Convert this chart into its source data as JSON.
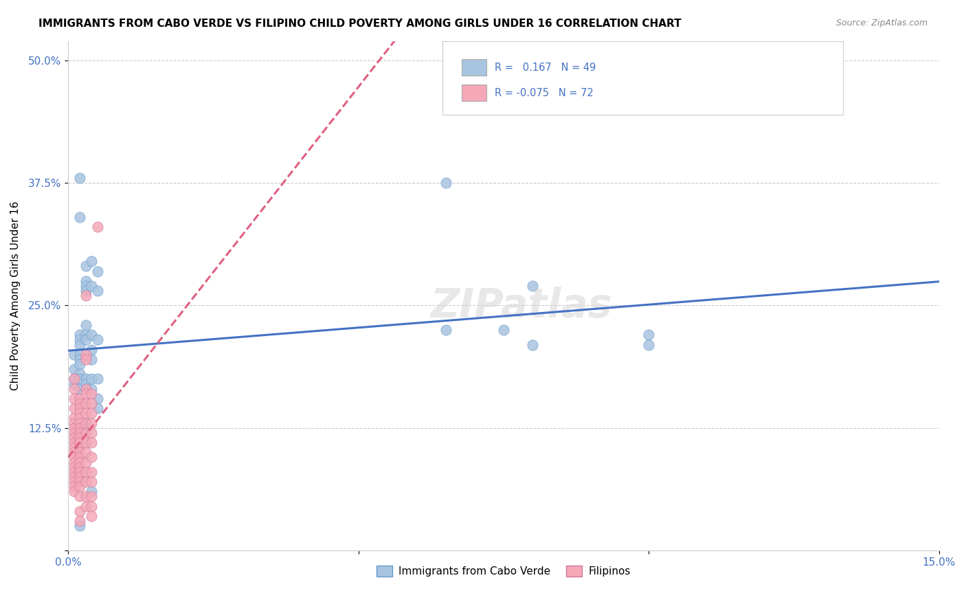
{
  "title": "IMMIGRANTS FROM CABO VERDE VS FILIPINO CHILD POVERTY AMONG GIRLS UNDER 16 CORRELATION CHART",
  "source": "Source: ZipAtlas.com",
  "ylabel": "Child Poverty Among Girls Under 16",
  "yticks": [
    0.0,
    0.125,
    0.25,
    0.375,
    0.5
  ],
  "ytick_labels": [
    "",
    "12.5%",
    "25.0%",
    "37.5%",
    "50.0%"
  ],
  "xlim": [
    0.0,
    0.15
  ],
  "ylim": [
    0.0,
    0.52
  ],
  "cabo_verde_color": "#a8c4e0",
  "cabo_verde_edge": "#6699cc",
  "cabo_verde_line": "#4472c4",
  "filipino_color": "#f4a8b8",
  "filipino_edge": "#cc7799",
  "filipino_line": "#e06080",
  "watermark": "ZIPatlas",
  "cabo_verde_points": [
    [
      0.001,
      0.2
    ],
    [
      0.001,
      0.185
    ],
    [
      0.001,
      0.175
    ],
    [
      0.001,
      0.17
    ],
    [
      0.002,
      0.38
    ],
    [
      0.002,
      0.34
    ],
    [
      0.002,
      0.22
    ],
    [
      0.002,
      0.215
    ],
    [
      0.002,
      0.21
    ],
    [
      0.002,
      0.2
    ],
    [
      0.002,
      0.195
    ],
    [
      0.002,
      0.19
    ],
    [
      0.002,
      0.18
    ],
    [
      0.002,
      0.175
    ],
    [
      0.002,
      0.165
    ],
    [
      0.002,
      0.025
    ],
    [
      0.003,
      0.29
    ],
    [
      0.003,
      0.275
    ],
    [
      0.003,
      0.27
    ],
    [
      0.003,
      0.265
    ],
    [
      0.003,
      0.23
    ],
    [
      0.003,
      0.22
    ],
    [
      0.003,
      0.215
    ],
    [
      0.003,
      0.175
    ],
    [
      0.003,
      0.17
    ],
    [
      0.003,
      0.165
    ],
    [
      0.003,
      0.13
    ],
    [
      0.003,
      0.125
    ],
    [
      0.004,
      0.295
    ],
    [
      0.004,
      0.27
    ],
    [
      0.004,
      0.22
    ],
    [
      0.004,
      0.205
    ],
    [
      0.004,
      0.195
    ],
    [
      0.004,
      0.175
    ],
    [
      0.004,
      0.165
    ],
    [
      0.004,
      0.06
    ],
    [
      0.005,
      0.285
    ],
    [
      0.005,
      0.265
    ],
    [
      0.005,
      0.215
    ],
    [
      0.005,
      0.175
    ],
    [
      0.005,
      0.155
    ],
    [
      0.005,
      0.145
    ],
    [
      0.065,
      0.375
    ],
    [
      0.065,
      0.225
    ],
    [
      0.075,
      0.225
    ],
    [
      0.08,
      0.27
    ],
    [
      0.08,
      0.21
    ],
    [
      0.1,
      0.22
    ],
    [
      0.1,
      0.21
    ]
  ],
  "filipino_points": [
    [
      0.001,
      0.175
    ],
    [
      0.001,
      0.165
    ],
    [
      0.001,
      0.155
    ],
    [
      0.001,
      0.145
    ],
    [
      0.001,
      0.135
    ],
    [
      0.001,
      0.13
    ],
    [
      0.001,
      0.125
    ],
    [
      0.001,
      0.12
    ],
    [
      0.001,
      0.115
    ],
    [
      0.001,
      0.11
    ],
    [
      0.001,
      0.105
    ],
    [
      0.001,
      0.1
    ],
    [
      0.001,
      0.095
    ],
    [
      0.001,
      0.09
    ],
    [
      0.001,
      0.085
    ],
    [
      0.001,
      0.08
    ],
    [
      0.001,
      0.075
    ],
    [
      0.001,
      0.07
    ],
    [
      0.001,
      0.065
    ],
    [
      0.001,
      0.06
    ],
    [
      0.002,
      0.155
    ],
    [
      0.002,
      0.15
    ],
    [
      0.002,
      0.145
    ],
    [
      0.002,
      0.14
    ],
    [
      0.002,
      0.135
    ],
    [
      0.002,
      0.13
    ],
    [
      0.002,
      0.125
    ],
    [
      0.002,
      0.12
    ],
    [
      0.002,
      0.115
    ],
    [
      0.002,
      0.11
    ],
    [
      0.002,
      0.105
    ],
    [
      0.002,
      0.1
    ],
    [
      0.002,
      0.095
    ],
    [
      0.002,
      0.09
    ],
    [
      0.002,
      0.085
    ],
    [
      0.002,
      0.08
    ],
    [
      0.002,
      0.075
    ],
    [
      0.002,
      0.07
    ],
    [
      0.002,
      0.065
    ],
    [
      0.002,
      0.055
    ],
    [
      0.002,
      0.04
    ],
    [
      0.002,
      0.03
    ],
    [
      0.003,
      0.26
    ],
    [
      0.003,
      0.2
    ],
    [
      0.003,
      0.195
    ],
    [
      0.003,
      0.165
    ],
    [
      0.003,
      0.16
    ],
    [
      0.003,
      0.15
    ],
    [
      0.003,
      0.14
    ],
    [
      0.003,
      0.13
    ],
    [
      0.003,
      0.12
    ],
    [
      0.003,
      0.11
    ],
    [
      0.003,
      0.1
    ],
    [
      0.003,
      0.09
    ],
    [
      0.003,
      0.08
    ],
    [
      0.003,
      0.07
    ],
    [
      0.003,
      0.055
    ],
    [
      0.003,
      0.045
    ],
    [
      0.004,
      0.16
    ],
    [
      0.004,
      0.15
    ],
    [
      0.004,
      0.14
    ],
    [
      0.004,
      0.13
    ],
    [
      0.004,
      0.12
    ],
    [
      0.004,
      0.11
    ],
    [
      0.004,
      0.095
    ],
    [
      0.004,
      0.08
    ],
    [
      0.004,
      0.07
    ],
    [
      0.004,
      0.055
    ],
    [
      0.004,
      0.045
    ],
    [
      0.004,
      0.035
    ],
    [
      0.005,
      0.33
    ]
  ]
}
